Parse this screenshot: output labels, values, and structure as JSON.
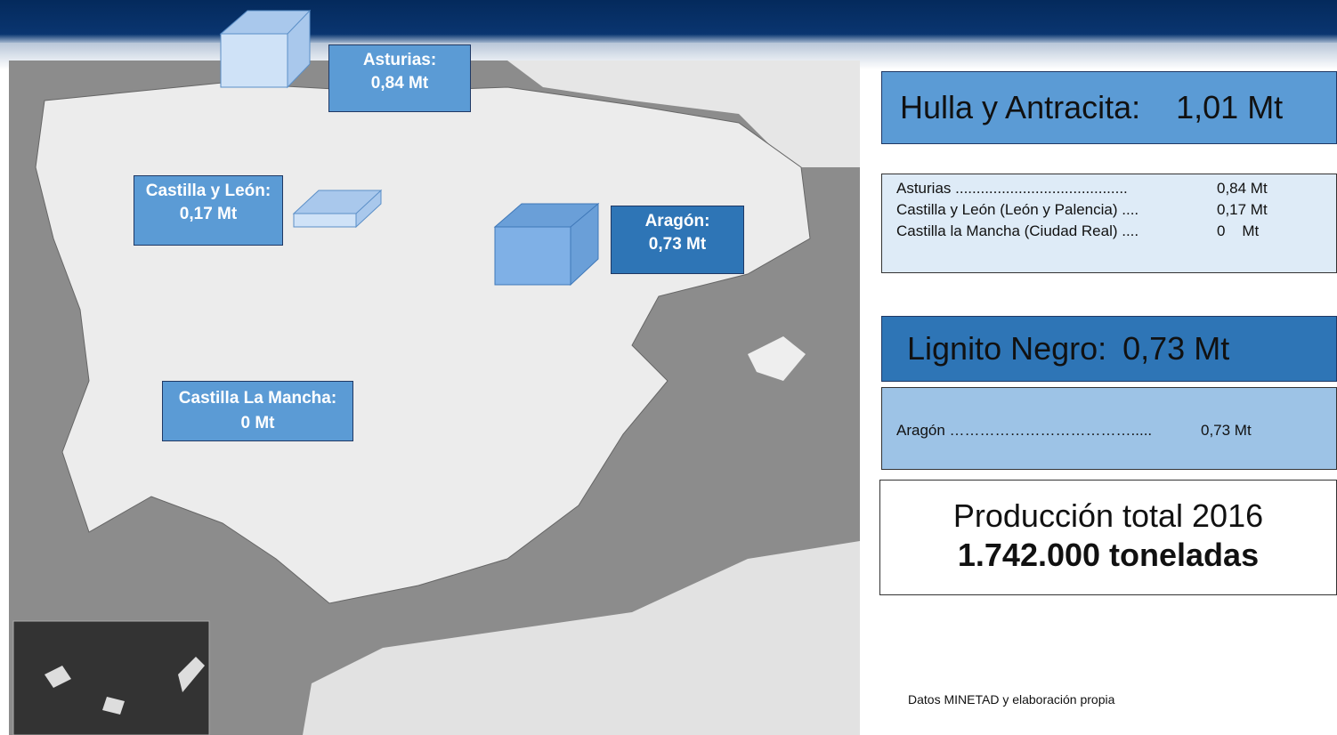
{
  "map_labels": [
    {
      "name": "Asturias:",
      "value": "0,84 Mt"
    },
    {
      "name": "Castilla y León:",
      "value": "0,17 Mt"
    },
    {
      "name": "Aragón:",
      "value": "0,73 Mt"
    },
    {
      "name": "Castilla La Mancha:",
      "value": "0 Mt"
    }
  ],
  "hulla": {
    "title": "Hulla y Antracita:",
    "total": "1,01 Mt",
    "rows": [
      [
        "Asturias .........................................",
        "0,84 Mt"
      ],
      [
        "Castilla y León (León y Palencia) ....",
        "0,17 Mt"
      ],
      [
        "Castilla la Mancha (Ciudad Real) ....",
        "0    Mt"
      ]
    ]
  },
  "lignito": {
    "title": "Lignito Negro:",
    "total": "0,73 Mt",
    "rows": [
      [
        "Aragón ……………………………….....",
        "0,73 Mt"
      ]
    ]
  },
  "produccion": {
    "line1": "Producción total 2016",
    "line2": "1.742.000 toneladas"
  },
  "source": "Datos MINETAD y elaboración propia"
}
